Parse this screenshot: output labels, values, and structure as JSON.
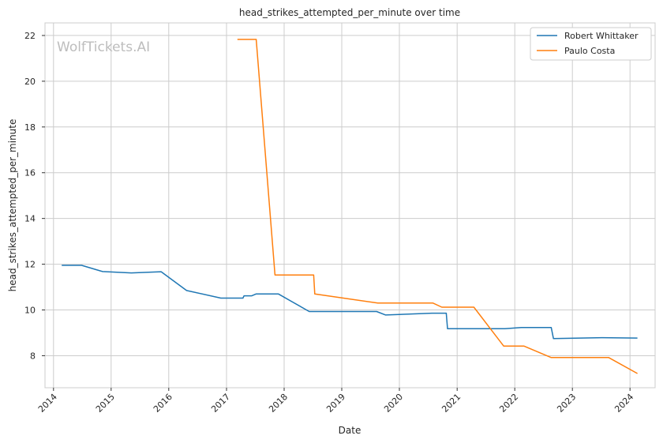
{
  "chart_data": {
    "type": "line",
    "title": "head_strikes_attempted_per_minute over time",
    "xlabel": "Date",
    "ylabel": "head_strikes_attempted_per_minute",
    "watermark": "WolfTickets.AI",
    "xlim": [
      "2013-11-08",
      "2024-06-08"
    ],
    "ylim": [
      6.6,
      22.55
    ],
    "x_ticks": [
      "2014-01-01",
      "2015-01-01",
      "2016-01-01",
      "2017-01-01",
      "2018-01-01",
      "2019-01-01",
      "2020-01-01",
      "2021-01-01",
      "2022-01-01",
      "2023-01-01",
      "2024-01-01"
    ],
    "x_tick_labels": [
      "2014",
      "2015",
      "2016",
      "2017",
      "2018",
      "2019",
      "2020",
      "2021",
      "2022",
      "2023",
      "2024"
    ],
    "y_ticks": [
      8,
      10,
      12,
      14,
      16,
      18,
      20,
      22
    ],
    "grid": true,
    "legend_position": "top-right",
    "series": [
      {
        "name": "Robert Whittaker",
        "color": "#1f77b4",
        "points": [
          [
            "2014-02-22",
            11.95
          ],
          [
            "2014-06-28",
            11.95
          ],
          [
            "2014-11-08",
            11.68
          ],
          [
            "2015-05-09",
            11.62
          ],
          [
            "2015-11-14",
            11.67
          ],
          [
            "2016-04-23",
            10.85
          ],
          [
            "2016-11-26",
            10.52
          ],
          [
            "2017-04-15",
            10.52
          ],
          [
            "2017-04-22",
            10.62
          ],
          [
            "2017-06-10",
            10.62
          ],
          [
            "2017-07-08",
            10.7
          ],
          [
            "2017-11-25",
            10.7
          ],
          [
            "2018-06-09",
            9.93
          ],
          [
            "2019-08-10",
            9.93
          ],
          [
            "2019-10-06",
            9.78
          ],
          [
            "2020-07-25",
            9.86
          ],
          [
            "2020-10-24",
            9.86
          ],
          [
            "2020-11-01",
            9.18
          ],
          [
            "2021-04-17",
            9.18
          ],
          [
            "2021-10-30",
            9.18
          ],
          [
            "2022-02-12",
            9.23
          ],
          [
            "2022-08-20",
            9.23
          ],
          [
            "2022-09-03",
            8.75
          ],
          [
            "2023-07-08",
            8.79
          ],
          [
            "2024-02-17",
            8.77
          ]
        ]
      },
      {
        "name": "Paulo Costa",
        "color": "#ff7f0e",
        "points": [
          [
            "2017-03-11",
            21.83
          ],
          [
            "2017-07-08",
            21.83
          ],
          [
            "2017-11-04",
            11.53
          ],
          [
            "2018-07-07",
            11.53
          ],
          [
            "2018-07-14",
            10.7
          ],
          [
            "2019-08-17",
            10.3
          ],
          [
            "2020-08-01",
            10.3
          ],
          [
            "2020-09-26",
            10.12
          ],
          [
            "2021-04-17",
            10.12
          ],
          [
            "2021-10-23",
            8.42
          ],
          [
            "2022-03-01",
            8.42
          ],
          [
            "2022-08-20",
            7.92
          ],
          [
            "2023-08-19",
            7.92
          ],
          [
            "2024-02-17",
            7.22
          ]
        ]
      }
    ]
  }
}
